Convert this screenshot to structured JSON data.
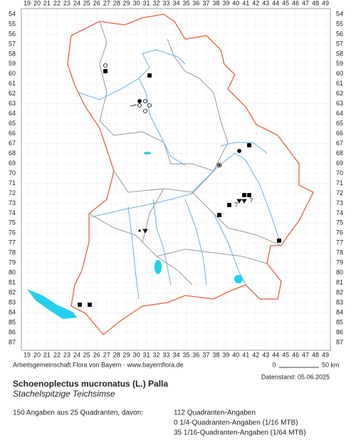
{
  "map": {
    "columns": [
      19,
      20,
      21,
      22,
      23,
      24,
      25,
      26,
      27,
      28,
      29,
      30,
      31,
      32,
      33,
      34,
      35,
      36,
      37,
      38,
      39,
      40,
      41,
      42,
      43,
      44,
      45,
      46,
      47,
      48,
      49
    ],
    "rows": [
      54,
      55,
      56,
      57,
      58,
      59,
      60,
      61,
      62,
      63,
      64,
      65,
      66,
      67,
      68,
      69,
      70,
      71,
      72,
      73,
      74,
      75,
      76,
      77,
      78,
      79,
      80,
      81,
      82,
      83,
      84,
      85,
      86,
      87
    ],
    "uncertain_mark": "?"
  },
  "footer": {
    "credit": "Arbeitsgemeinschaft Flora von Bayern - www.bayernflora.de",
    "scale_start": "0",
    "scale_end": "50 km",
    "date": "Datenstand: 05.06.2025",
    "title": "Schoenoplectus mucronatus (L.) Palla",
    "subtitle": "Stachelspitzige Teichsimse",
    "summary": "150 Angaben aus 25 Quadranten, davon:",
    "stats": [
      "112 Quadranten-Angaben",
      "0 1/4-Quadranten-Angaben (1/16 MTB)",
      "35 1/16-Quadranten-Angaben (1/64 MTB)"
    ]
  }
}
